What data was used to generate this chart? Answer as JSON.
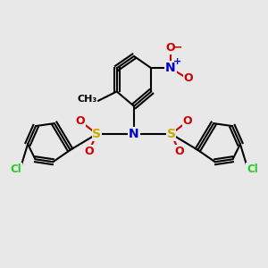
{
  "background_color": "#e8e8e8",
  "colors": {
    "C": "#000000",
    "N": "#0000cc",
    "S": "#ccaa00",
    "O": "#cc0000",
    "Cl": "#22cc22",
    "bg": "#e8e8e8"
  },
  "lw": 1.5
}
